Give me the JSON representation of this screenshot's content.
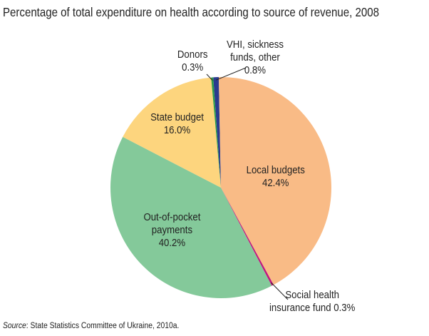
{
  "chart_data": {
    "type": "pie",
    "title": "Percentage of total expenditure on health according to source of revenue, 2008",
    "slices": [
      {
        "name": "VHI, sickness funds, other",
        "value": 0.8,
        "label_lines": [
          "VHI, sickness",
          "funds, other",
          "0.8%"
        ],
        "color": "#2b3a8f"
      },
      {
        "name": "Local budgets",
        "value": 42.4,
        "label_lines": [
          "Local budgets",
          "42.4%"
        ],
        "color": "#f9bb86"
      },
      {
        "name": "Social health insurance fund",
        "value": 0.3,
        "label_lines": [
          "Social health",
          "insurance fund 0.3%"
        ],
        "color": "#c0177d"
      },
      {
        "name": "Out-of-pocket payments",
        "value": 40.2,
        "label_lines": [
          "Out-of-pocket",
          "payments",
          "40.2%"
        ],
        "color": "#84c99a"
      },
      {
        "name": "State budget",
        "value": 16.0,
        "label_lines": [
          "State budget",
          "16.0%"
        ],
        "color": "#fdd57e"
      },
      {
        "name": "Donors",
        "value": 0.3,
        "label_lines": [
          "Donors",
          "0.3%"
        ],
        "color": "#2e9a4a"
      }
    ]
  },
  "source": {
    "prefix": "Source",
    "text": ": State Statistics Committee of Ukraine, 2010a."
  }
}
